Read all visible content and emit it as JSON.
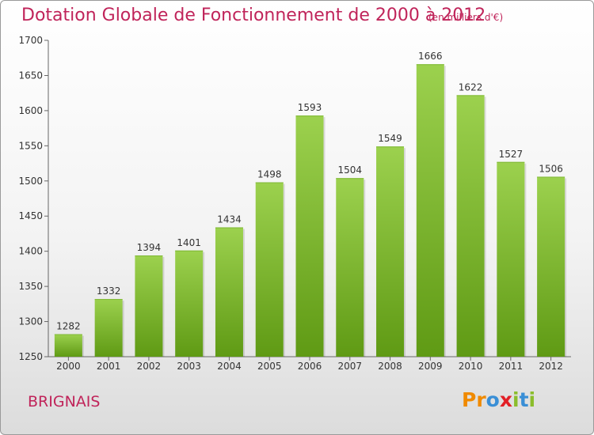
{
  "header": {
    "title": "Dotation Globale de Fonctionnement de 2000 à 2012",
    "unit": "(en milliers d'€)"
  },
  "footer": {
    "city": "BRIGNAIS",
    "logo": [
      "P",
      "r",
      "o",
      "x",
      "i",
      "t",
      "i"
    ]
  },
  "colors": {
    "accent": "#c0245a",
    "bar_top": "#9cd14e",
    "bar_bottom": "#5f9a14",
    "logo": [
      "#f08a00",
      "#f08a00",
      "#3a8fd6",
      "#e21f26",
      "#8bbd2c",
      "#3a8fd6",
      "#8bbd2c"
    ]
  },
  "chart_data": {
    "type": "bar",
    "title": "Dotation Globale de Fonctionnement de 2000 à 2012",
    "subtitle": "(en milliers d'€)",
    "categories": [
      "2000",
      "2001",
      "2002",
      "2003",
      "2004",
      "2005",
      "2006",
      "2007",
      "2008",
      "2009",
      "2010",
      "2011",
      "2012"
    ],
    "values": [
      1282,
      1332,
      1394,
      1401,
      1434,
      1498,
      1593,
      1504,
      1549,
      1666,
      1622,
      1527,
      1506
    ],
    "ylim": [
      1250,
      1700
    ],
    "yticks": [
      1250,
      1300,
      1350,
      1400,
      1450,
      1500,
      1550,
      1600,
      1650,
      1700
    ],
    "grid": false,
    "legend": "none",
    "data_labels": true
  }
}
